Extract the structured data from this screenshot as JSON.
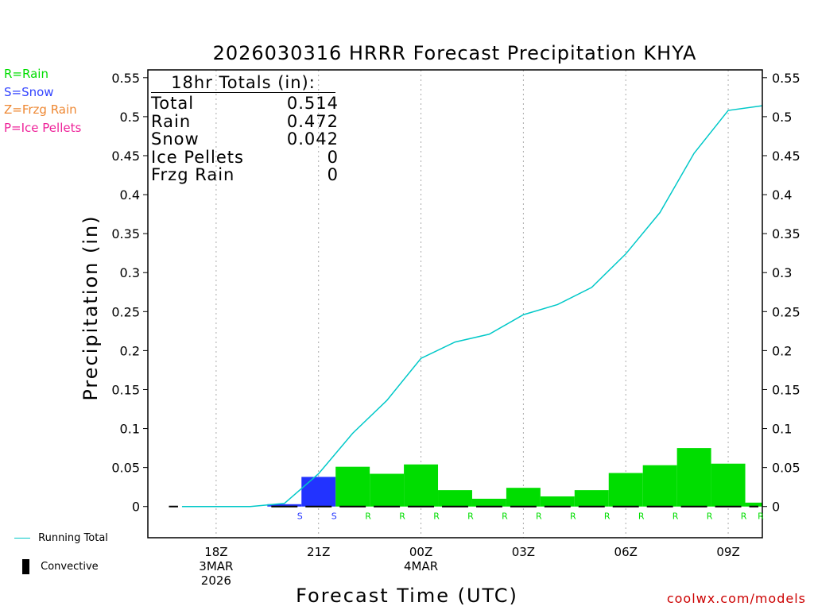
{
  "chart_data": {
    "type": "bar",
    "title": "2026030316 HRRR Forecast Precipitation KHYA",
    "xlabel": "Forecast Time (UTC)",
    "ylabel": "Precipitation (in)",
    "ylim": [
      -0.04,
      0.56
    ],
    "yticks": [
      0,
      0.05,
      0.1,
      0.15,
      0.2,
      0.25,
      0.3,
      0.35,
      0.4,
      0.45,
      0.5,
      0.55
    ],
    "ytick_labels": [
      "0",
      "0.05",
      "0.1",
      "0.15",
      "0.2",
      "0.25",
      "0.3",
      "0.35",
      "0.4",
      "0.45",
      "0.5",
      "0.55"
    ],
    "xlim_hours": [
      16,
      34
    ],
    "xticks": [
      {
        "hour": 18,
        "lines": [
          "18Z",
          "3MAR",
          "2026"
        ]
      },
      {
        "hour": 21,
        "lines": [
          "21Z"
        ]
      },
      {
        "hour": 24,
        "lines": [
          "00Z",
          "4MAR"
        ]
      },
      {
        "hour": 27,
        "lines": [
          "03Z"
        ]
      },
      {
        "hour": 30,
        "lines": [
          "06Z"
        ]
      },
      {
        "hour": 33,
        "lines": [
          "09Z"
        ]
      }
    ],
    "bars": [
      {
        "start": 16.5,
        "end": 17.0,
        "value": 0.0,
        "type": ""
      },
      {
        "start": 19.5,
        "end": 20.5,
        "value": 0.003,
        "type": "S"
      },
      {
        "start": 20.5,
        "end": 21.5,
        "value": 0.038,
        "type": "S"
      },
      {
        "start": 21.5,
        "end": 22.5,
        "value": 0.051,
        "type": "R"
      },
      {
        "start": 22.5,
        "end": 23.5,
        "value": 0.042,
        "type": "R"
      },
      {
        "start": 23.5,
        "end": 24.5,
        "value": 0.054,
        "type": "R"
      },
      {
        "start": 24.5,
        "end": 25.5,
        "value": 0.021,
        "type": "R"
      },
      {
        "start": 25.5,
        "end": 26.5,
        "value": 0.01,
        "type": "R"
      },
      {
        "start": 26.5,
        "end": 27.5,
        "value": 0.024,
        "type": "R"
      },
      {
        "start": 27.5,
        "end": 28.5,
        "value": 0.013,
        "type": "R"
      },
      {
        "start": 28.5,
        "end": 29.5,
        "value": 0.021,
        "type": "R"
      },
      {
        "start": 29.5,
        "end": 30.5,
        "value": 0.043,
        "type": "R"
      },
      {
        "start": 30.5,
        "end": 31.5,
        "value": 0.053,
        "type": "R"
      },
      {
        "start": 31.5,
        "end": 32.5,
        "value": 0.075,
        "type": "R"
      },
      {
        "start": 32.5,
        "end": 33.5,
        "value": 0.055,
        "type": "R"
      },
      {
        "start": 33.5,
        "end": 34.0,
        "value": 0.005,
        "type": "R"
      }
    ],
    "running_total": {
      "name": "Running Total",
      "x": [
        17,
        18,
        19,
        20,
        21,
        22,
        23,
        24,
        25,
        26,
        27,
        28,
        29,
        30,
        31,
        32,
        33,
        34
      ],
      "y": [
        0,
        0,
        0,
        0.004,
        0.042,
        0.094,
        0.136,
        0.19,
        0.211,
        0.221,
        0.246,
        0.259,
        0.281,
        0.324,
        0.377,
        0.453,
        0.508,
        0.514
      ]
    },
    "type_labels": [
      {
        "hour": 20.5,
        "label": "S"
      },
      {
        "hour": 21.5,
        "label": "S"
      },
      {
        "hour": 22.5,
        "label": "R"
      },
      {
        "hour": 23.5,
        "label": "R"
      },
      {
        "hour": 24.5,
        "label": "R"
      },
      {
        "hour": 25.5,
        "label": "R"
      },
      {
        "hour": 26.5,
        "label": "R"
      },
      {
        "hour": 27.5,
        "label": "R"
      },
      {
        "hour": 28.5,
        "label": "R"
      },
      {
        "hour": 29.5,
        "label": "R"
      },
      {
        "hour": 30.5,
        "label": "R"
      },
      {
        "hour": 31.5,
        "label": "R"
      },
      {
        "hour": 32.5,
        "label": "R"
      },
      {
        "hour": 33.5,
        "label": "R"
      },
      {
        "hour": 34.0,
        "label": "R"
      }
    ],
    "colors": {
      "rain": "#00dd00",
      "snow": "#2233ff",
      "frzg_rain": "#ee8833",
      "ice_pellets": "#ee2299",
      "running_total": "#00c8c8",
      "convective": "#000000"
    },
    "legend": "left"
  },
  "type_legend": [
    {
      "text": "R=Rain",
      "color": "#00dd00"
    },
    {
      "text": "S=Snow",
      "color": "#3344ff"
    },
    {
      "text": "Z=Frzg Rain",
      "color": "#ee8833"
    },
    {
      "text": "P=Ice Pellets",
      "color": "#ee2299"
    }
  ],
  "totals": {
    "header": "18hr Totals (in):",
    "rows": [
      {
        "label": "Total",
        "value": "0.514"
      },
      {
        "label": "Rain",
        "value": "0.472"
      },
      {
        "label": "Snow",
        "value": "0.042"
      },
      {
        "label": "Ice Pellets",
        "value": "0"
      },
      {
        "label": "Frzg Rain",
        "value": "0"
      }
    ]
  },
  "bottom_legend": {
    "running_total": "Running Total",
    "convective": "Convective"
  },
  "credit": "coolwx.com/models"
}
